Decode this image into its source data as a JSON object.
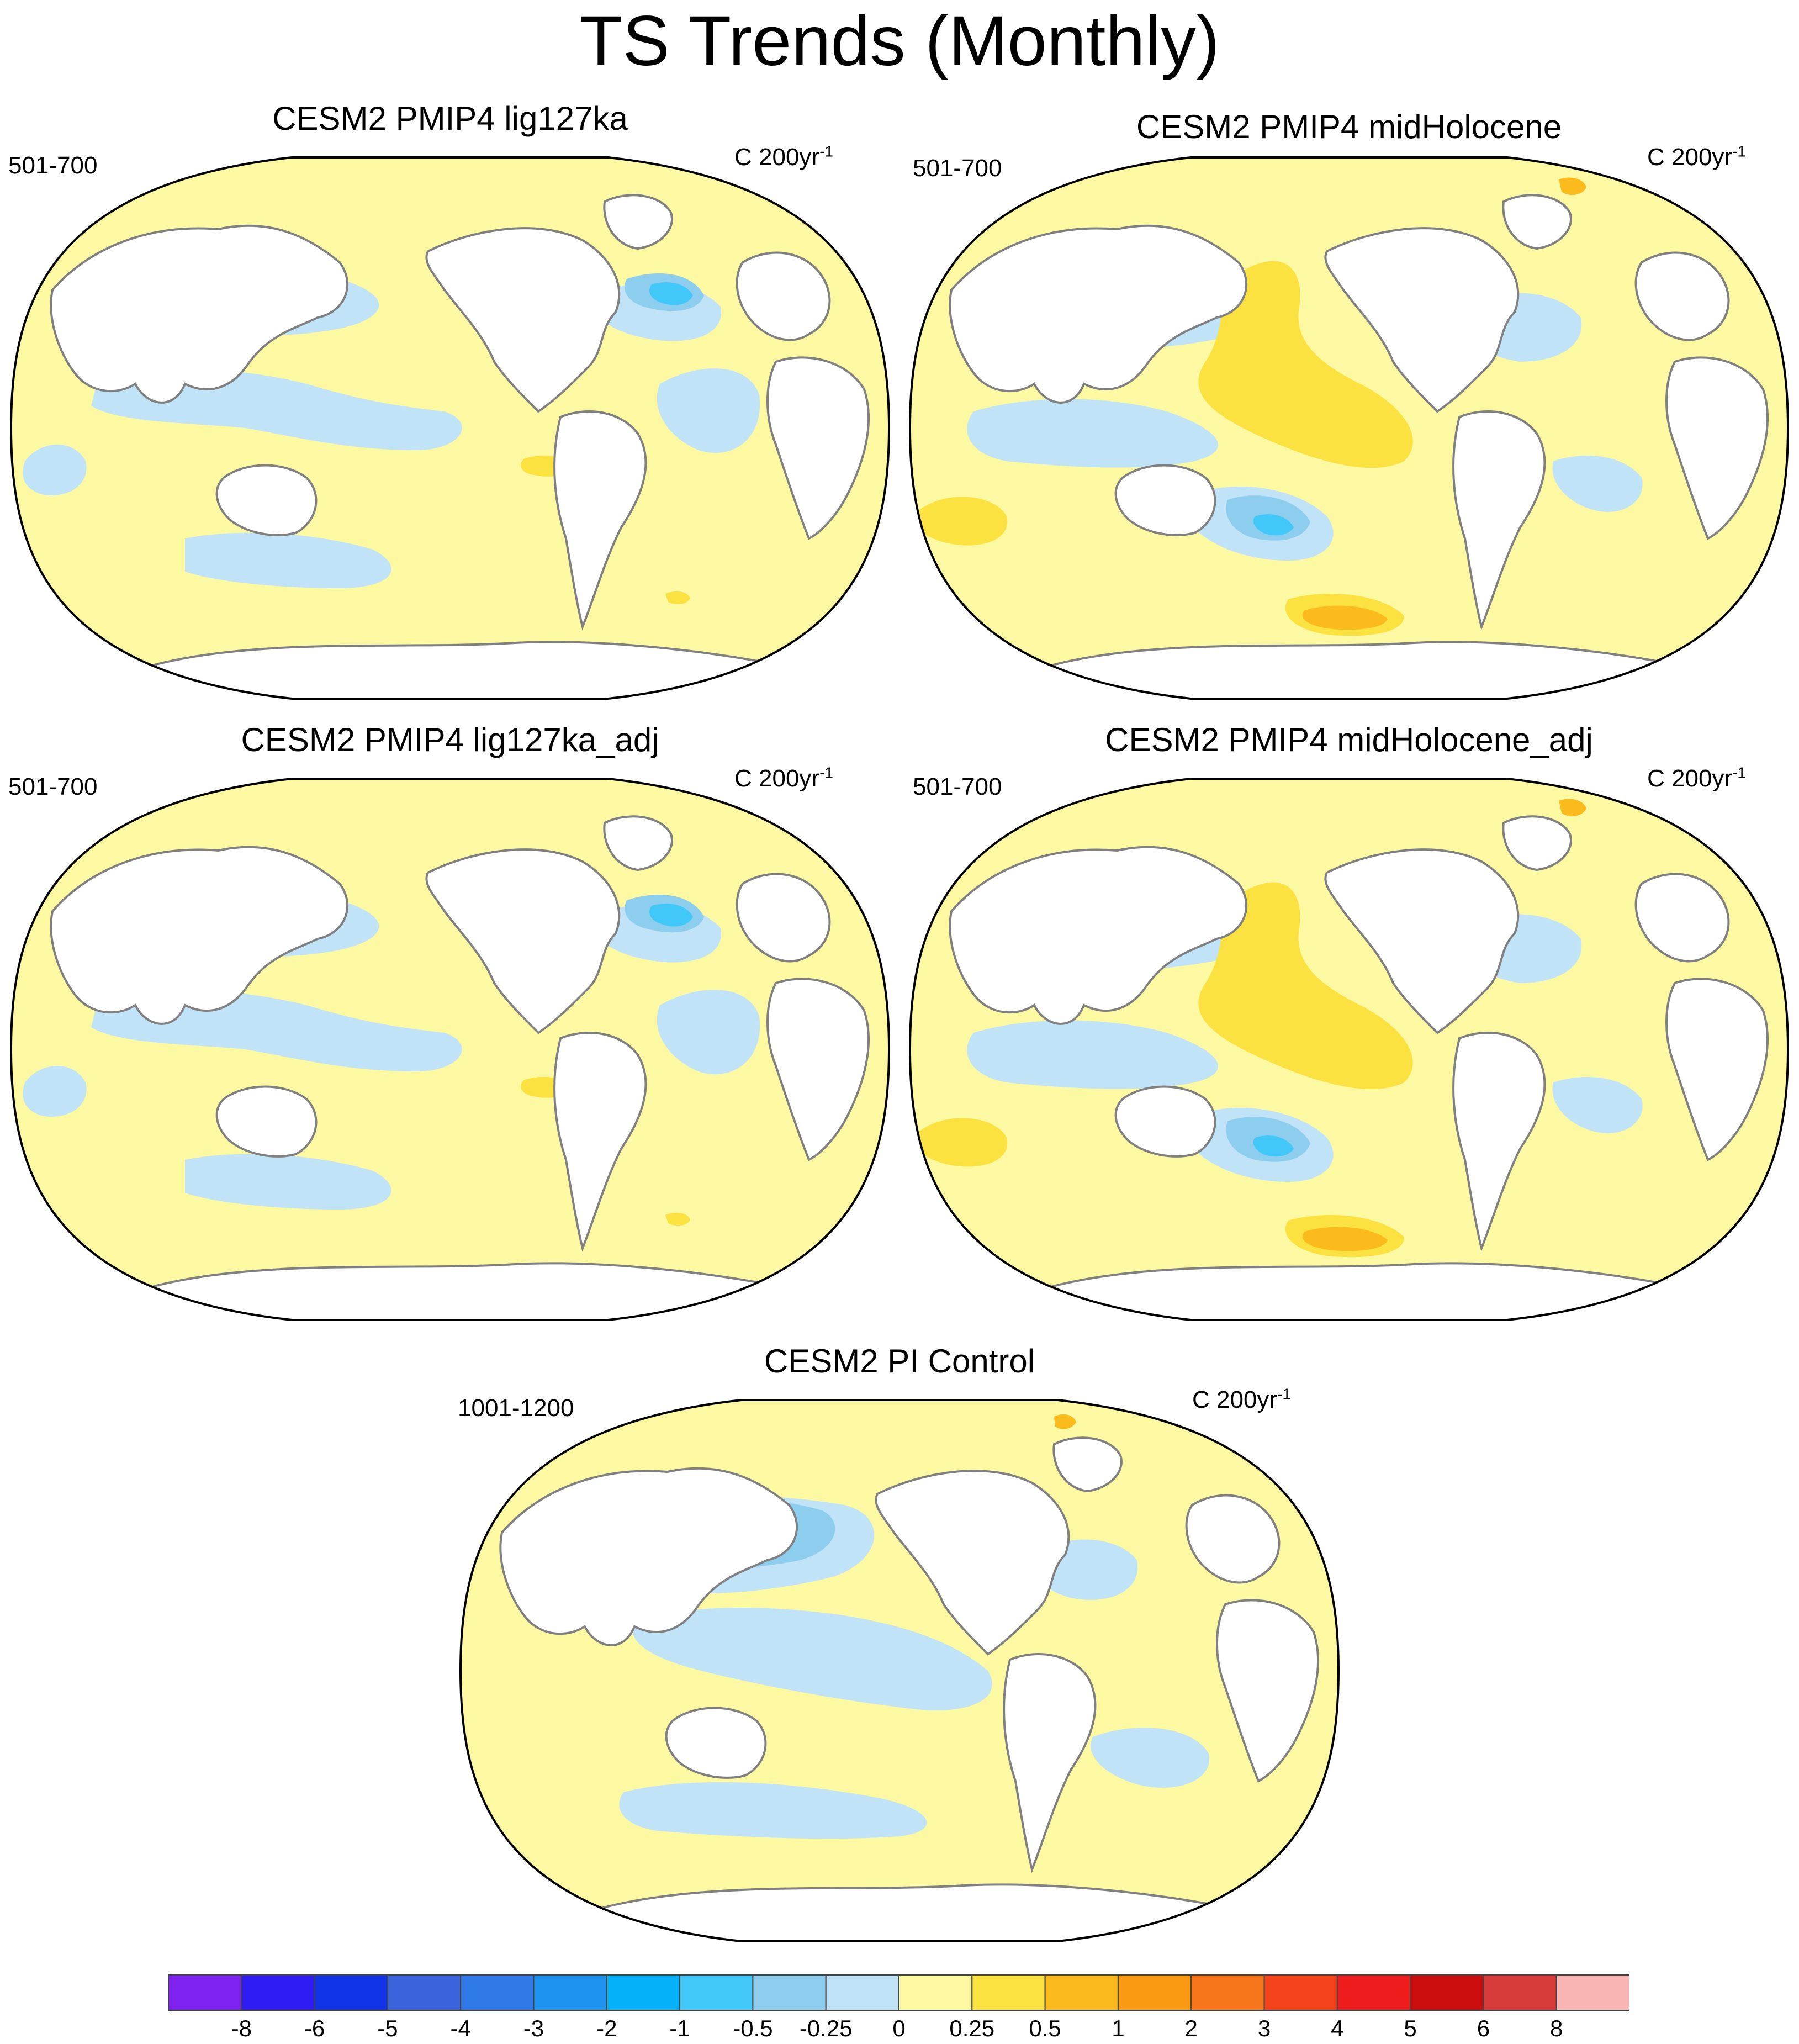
{
  "title": "TS Trends (Monthly)",
  "panels": [
    {
      "id": "lig127ka",
      "title": "CESM2 PMIP4 lig127ka",
      "period": "501-700",
      "units": "C 200yr",
      "units_sup": "-1",
      "pattern": "lig"
    },
    {
      "id": "midHolocene",
      "title": "CESM2 PMIP4 midHolocene",
      "period": "501-700",
      "units": "C 200yr",
      "units_sup": "-1",
      "pattern": "mh"
    },
    {
      "id": "lig127ka_adj",
      "title": "CESM2 PMIP4 lig127ka_adj",
      "period": "501-700",
      "units": "C 200yr",
      "units_sup": "-1",
      "pattern": "lig"
    },
    {
      "id": "midHolocene_adj",
      "title": "CESM2 PMIP4 midHolocene_adj",
      "period": "501-700",
      "units": "C 200yr",
      "units_sup": "-1",
      "pattern": "mh"
    },
    {
      "id": "pi_control",
      "title": "CESM2 PI Control",
      "period": "1001-1200",
      "units": "C 200yr",
      "units_sup": "-1",
      "pattern": "pi"
    }
  ],
  "colorbar": {
    "labels": [
      "-8",
      "-6",
      "-5",
      "-4",
      "-3",
      "-2",
      "-1",
      "-0.5",
      "-0.25",
      "0",
      "0.25",
      "0.5",
      "1",
      "2",
      "3",
      "4",
      "5",
      "6",
      "8"
    ],
    "colors": [
      "#7e22f2",
      "#2f1cf2",
      "#1234e8",
      "#3a62dc",
      "#2f7ae8",
      "#1f93f0",
      "#06b2f7",
      "#42c8f8",
      "#8dcdee",
      "#c1e3f7",
      "#fdf9a2",
      "#fbe240",
      "#fbbb1c",
      "#f99a12",
      "#f6751a",
      "#f4431a",
      "#ee1c1c",
      "#cc0d0d",
      "#d83a3a",
      "#f9b4b4"
    ]
  },
  "palette": {
    "ocean_base": "#fdf9a2",
    "cool_1": "#c1e3f7",
    "cool_2": "#8dcdee",
    "cool_3": "#42c8f8",
    "cool_4": "#1f93f0",
    "warm_1": "#fbe240",
    "warm_2": "#fbbb1c",
    "warm_3": "#f99a12",
    "land": "#ffffff",
    "coastline": "#808080"
  }
}
